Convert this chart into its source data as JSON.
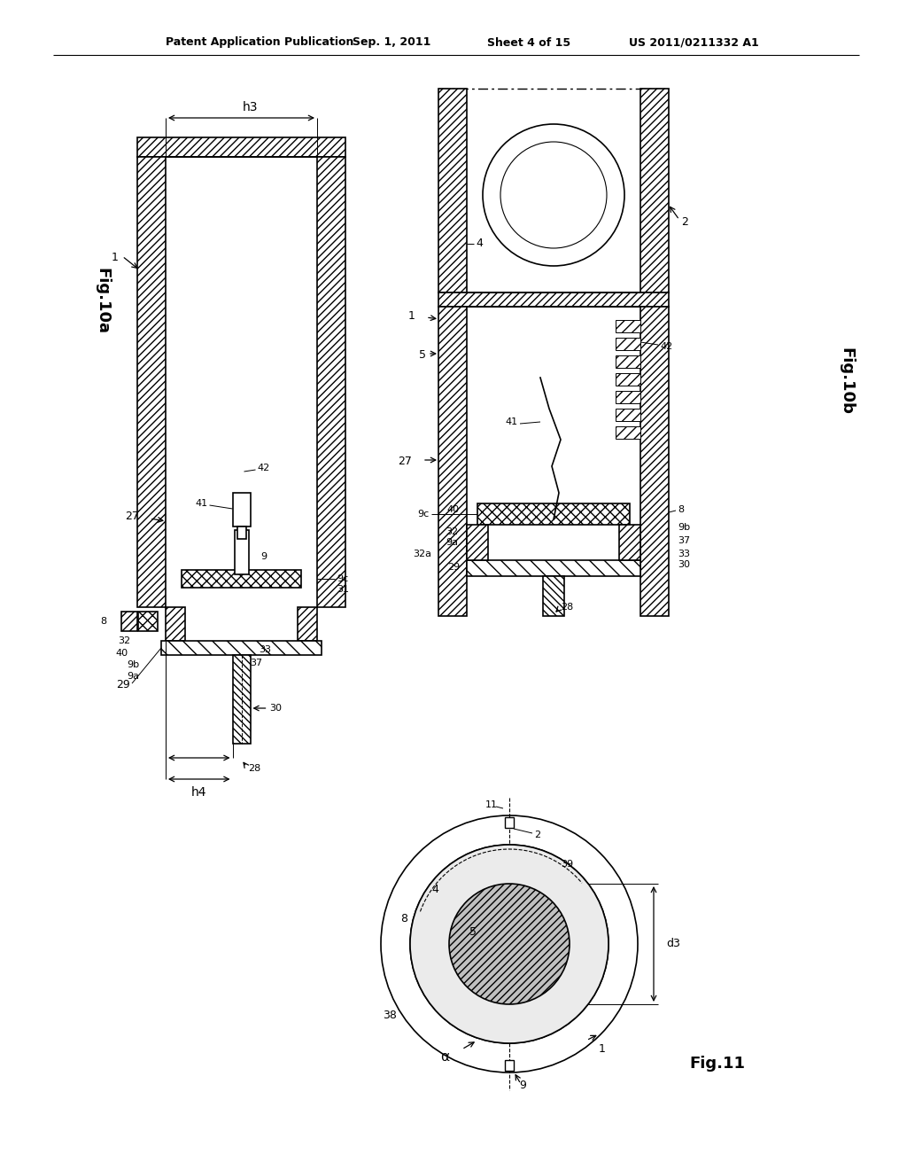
{
  "background_color": "#ffffff",
  "header_text": "Patent Application Publication",
  "header_date": "Sep. 1, 2011",
  "header_sheet": "Sheet 4 of 15",
  "header_patent": "US 2011/0211332 A1",
  "fig10a_label": "Fig.10a",
  "fig10b_label": "Fig.10b",
  "fig11_label": "Fig.11",
  "line_color": "#000000",
  "hatch_color": "#000000",
  "text_color": "#000000"
}
